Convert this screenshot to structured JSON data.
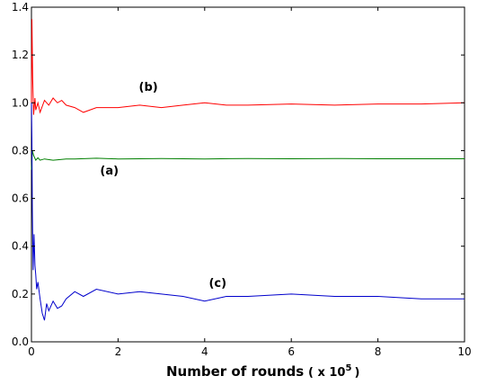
{
  "chart_data": {
    "type": "line",
    "title": "",
    "xlabel": "Number of rounds",
    "xlabel_unit": "( x 10",
    "xlabel_exponent": "5",
    "xlabel_close": ")",
    "ylabel": "",
    "xlim": [
      0,
      10
    ],
    "ylim": [
      0,
      1.4
    ],
    "xticks": [
      "0",
      "2",
      "4",
      "6",
      "8",
      "10"
    ],
    "yticks": [
      "0.0",
      "0.2",
      "0.4",
      "0.6",
      "0.8",
      "1.0",
      "1.2",
      "1.4"
    ],
    "grid": false,
    "annotations": [
      {
        "text": "(b)",
        "x": 2.7,
        "y": 1.05
      },
      {
        "text": "(a)",
        "x": 1.8,
        "y": 0.7
      },
      {
        "text": "(c)",
        "x": 4.3,
        "y": 0.23
      }
    ],
    "series": [
      {
        "label": "(a)",
        "color": "#007f00",
        "x": [
          0,
          0.02,
          0.05,
          0.1,
          0.15,
          0.2,
          0.3,
          0.5,
          0.8,
          1,
          1.5,
          2,
          3,
          4,
          5,
          6,
          7,
          8,
          9,
          10
        ],
        "y": [
          0.72,
          0.8,
          0.78,
          0.76,
          0.77,
          0.76,
          0.765,
          0.76,
          0.765,
          0.765,
          0.768,
          0.765,
          0.767,
          0.765,
          0.767,
          0.766,
          0.767,
          0.766,
          0.766,
          0.766
        ]
      },
      {
        "label": "(b)",
        "color": "#ff0000",
        "x": [
          0,
          0.01,
          0.03,
          0.05,
          0.08,
          0.1,
          0.15,
          0.2,
          0.3,
          0.4,
          0.5,
          0.6,
          0.7,
          0.8,
          1,
          1.2,
          1.5,
          2,
          2.5,
          3,
          3.5,
          4,
          4.5,
          5,
          6,
          7,
          8,
          9,
          10
        ],
        "y": [
          1.0,
          1.35,
          1.1,
          0.95,
          1.02,
          0.97,
          1.0,
          0.96,
          1.01,
          0.99,
          1.02,
          1.0,
          1.01,
          0.99,
          0.98,
          0.96,
          0.98,
          0.98,
          0.99,
          0.98,
          0.99,
          1.0,
          0.99,
          0.99,
          0.995,
          0.99,
          0.995,
          0.995,
          1.0
        ]
      },
      {
        "label": "(c)",
        "color": "#0000cc",
        "x": [
          0,
          0.01,
          0.02,
          0.04,
          0.06,
          0.08,
          0.1,
          0.12,
          0.15,
          0.2,
          0.25,
          0.3,
          0.35,
          0.4,
          0.5,
          0.6,
          0.7,
          0.8,
          1,
          1.2,
          1.5,
          2,
          2.5,
          3,
          3.5,
          4,
          4.5,
          5,
          6,
          7,
          8,
          9,
          10
        ],
        "y": [
          1.0,
          0.85,
          0.55,
          0.3,
          0.45,
          0.32,
          0.28,
          0.22,
          0.25,
          0.18,
          0.12,
          0.09,
          0.16,
          0.13,
          0.17,
          0.14,
          0.15,
          0.18,
          0.21,
          0.19,
          0.22,
          0.2,
          0.21,
          0.2,
          0.19,
          0.17,
          0.19,
          0.19,
          0.2,
          0.19,
          0.19,
          0.18,
          0.18
        ]
      }
    ]
  }
}
